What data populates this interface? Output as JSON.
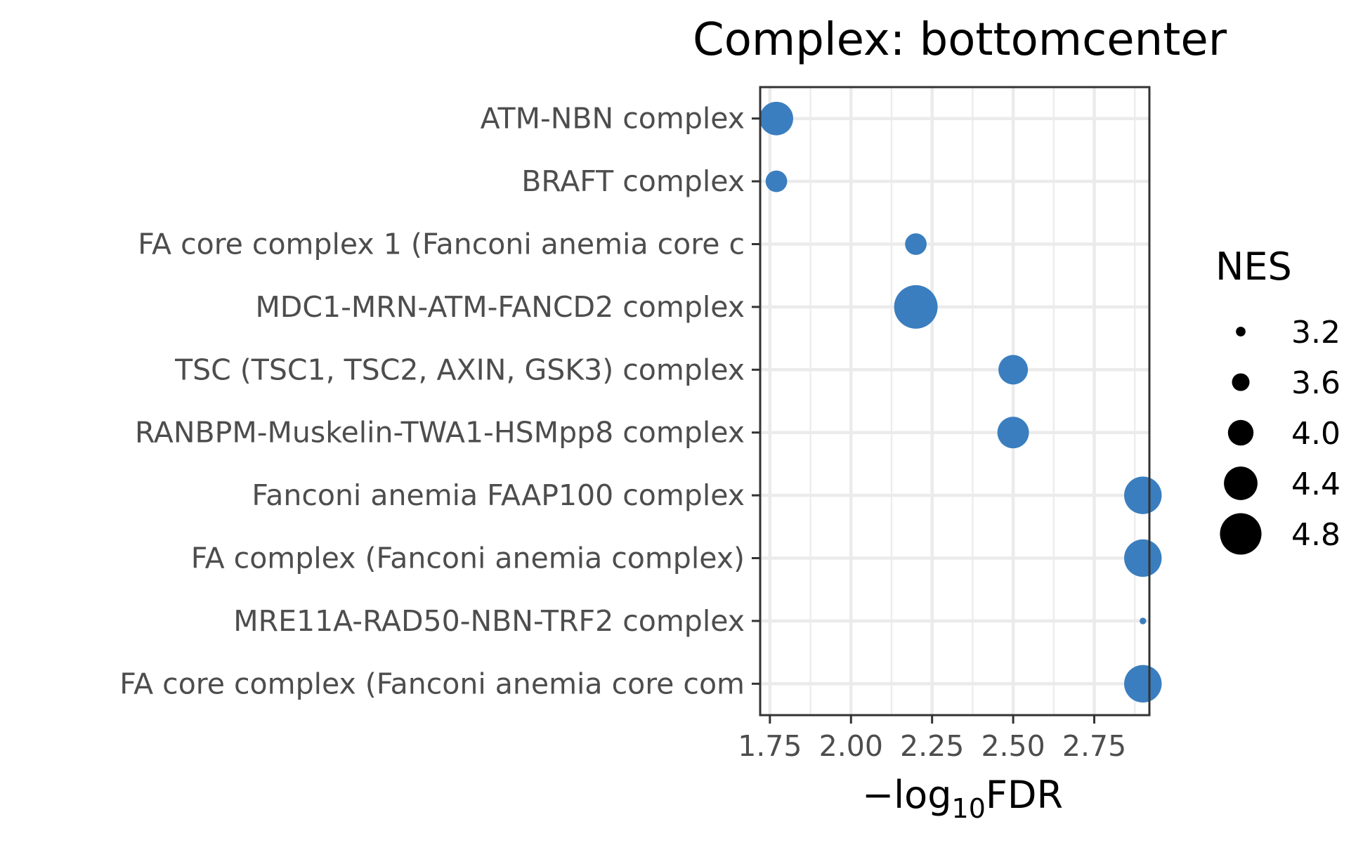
{
  "chart_data": {
    "type": "scatter",
    "title": "Complex: bottomcenter",
    "xlabel_prefix": "−log",
    "xlabel_sub": "10",
    "xlabel_suffix": "FDR",
    "ylabel": "",
    "xlim": [
      1.72,
      2.92
    ],
    "x_ticks": [
      1.75,
      2.0,
      2.25,
      2.5,
      2.75
    ],
    "x_tick_labels": [
      "1.75",
      "2.00",
      "2.25",
      "2.50",
      "2.75"
    ],
    "grid": true,
    "point_color": "#3a7ebf",
    "categories": [
      "ATM-NBN complex",
      "BRAFT complex",
      "FA core complex 1 (Fanconi anemia core c",
      "MDC1-MRN-ATM-FANCD2 complex",
      "TSC (TSC1, TSC2, AXIN, GSK3) complex",
      "RANBPM-Muskelin-TWA1-HSMpp8 complex",
      "Fanconi anemia FAAP100 complex",
      "FA complex (Fanconi anemia complex)",
      "MRE11A-RAD50-NBN-TRF2 complex",
      "FA core complex (Fanconi anemia core com"
    ],
    "points": [
      {
        "category": "ATM-NBN complex",
        "x": 1.77,
        "nes": 4.4
      },
      {
        "category": "BRAFT complex",
        "x": 1.77,
        "nes": 3.8
      },
      {
        "category": "FA core complex 1 (Fanconi anemia core c",
        "x": 2.2,
        "nes": 3.8
      },
      {
        "category": "MDC1-MRN-ATM-FANCD2 complex",
        "x": 2.2,
        "nes": 4.9
      },
      {
        "category": "TSC (TSC1, TSC2, AXIN, GSK3) complex",
        "x": 2.5,
        "nes": 4.2
      },
      {
        "category": "RANBPM-Muskelin-TWA1-HSMpp8 complex",
        "x": 2.5,
        "nes": 4.3
      },
      {
        "category": "Fanconi anemia FAAP100 complex",
        "x": 2.9,
        "nes": 4.6
      },
      {
        "category": "FA complex (Fanconi anemia complex)",
        "x": 2.9,
        "nes": 4.6
      },
      {
        "category": "MRE11A-RAD50-NBN-TRF2 complex",
        "x": 2.9,
        "nes": 3.05
      },
      {
        "category": "FA core complex (Fanconi anemia core com",
        "x": 2.9,
        "nes": 4.6
      }
    ],
    "legend": {
      "title": "NES",
      "position": "right",
      "sizes": [
        3.2,
        3.6,
        4.0,
        4.4,
        4.8
      ],
      "labels": [
        "3.2",
        "3.6",
        "4.0",
        "4.4",
        "4.8"
      ]
    }
  }
}
